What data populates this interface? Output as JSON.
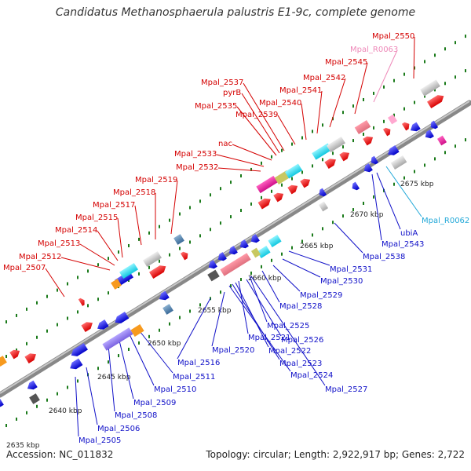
{
  "title": "Candidatus Methanosphaerula palustris E1-9c, complete genome",
  "footer": {
    "accession": "Accession: NC_011832",
    "summary": "Topology: circular; Length: 2,922,917 bp; Genes: 2,722"
  },
  "colors": {
    "forward_label": "#d40000",
    "reverse_label": "#1010c8",
    "rna_label_forward": "#ee88b8",
    "rna_label_reverse": "#22a8d8",
    "forward_arrow": "#ff0000",
    "reverse_arrow": "#0000ee",
    "backbone": "#888888",
    "tick_dots": "#1a7a1a"
  },
  "ticks": [
    "2635 kbp",
    "2640 kbp",
    "2645 kbp",
    "2650 kbp",
    "2655 kbp",
    "2660 kbp",
    "2665 kbp",
    "2670 kbp",
    "2675 kbp"
  ],
  "forward_labels": [
    "Mpal_2507",
    "Mpal_2512",
    "Mpal_2513",
    "Mpal_2514",
    "Mpal_2515",
    "Mpal_2517",
    "Mpal_2518",
    "Mpal_2519",
    "Mpal_2532",
    "Mpal_2533",
    "nac",
    "Mpal_2535",
    "pyrB",
    "Mpal_2537",
    "Mpal_2539",
    "Mpal_2540",
    "Mpal_2541",
    "Mpal_2542",
    "Mpal_2545",
    "Mpal_R0063",
    "Mpal_2550"
  ],
  "reverse_labels": [
    "Mpal_R0062",
    "ubiA",
    "Mpal_2543",
    "Mpal_2538",
    "Mpal_2531",
    "Mpal_2530",
    "Mpal_2529",
    "Mpal_2528",
    "Mpal_2525",
    "Mpal_2526",
    "Mpal_2521",
    "Mpal_2522",
    "Mpal_2523",
    "Mpal_2524",
    "Mpal_2527",
    "Mpal_2520",
    "Mpal_2516",
    "Mpal_2511",
    "Mpal_2510",
    "Mpal_2509",
    "Mpal_2508",
    "Mpal_2506",
    "Mpal_2505"
  ]
}
